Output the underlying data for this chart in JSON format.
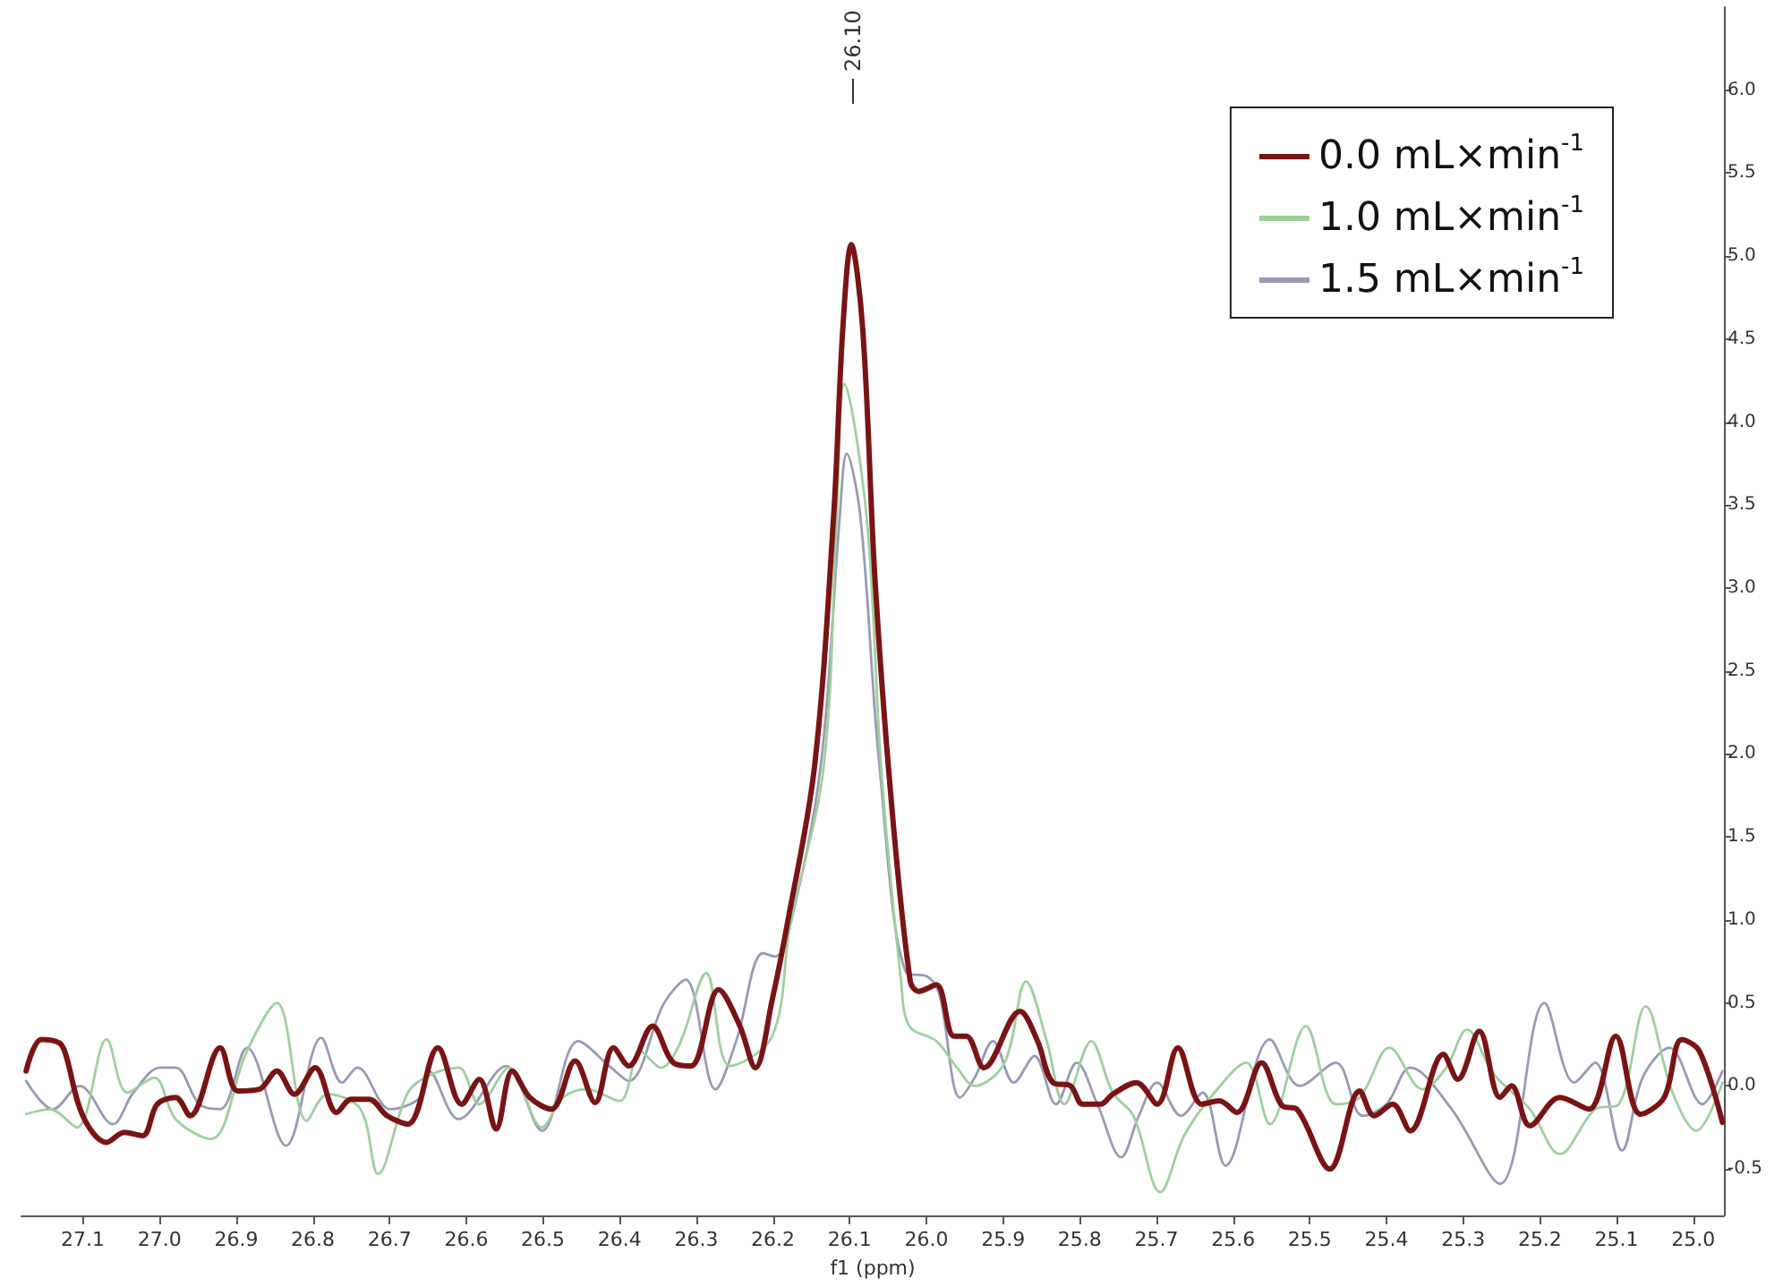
{
  "chart_data": {
    "type": "line",
    "xlabel": "f1 (ppm)",
    "xlim": [
      27.18,
      24.96
    ],
    "xticks": [
      27.1,
      {
        "value": 27,
        "label": "27.0"
      },
      26.9,
      26.8,
      26.7,
      26.6,
      26.5,
      26.4,
      26.3,
      26.2,
      26.1,
      {
        "value": 26,
        "label": "26.0"
      },
      25.9,
      25.8,
      25.7,
      25.6,
      25.5,
      25.4,
      25.3,
      25.2,
      25.1,
      {
        "value": 25,
        "label": "25.0"
      }
    ],
    "ylim": [
      -0.78,
      6.5
    ],
    "yticks": [
      -0.5,
      {
        "value": 0,
        "label": "0.0"
      },
      0.5,
      {
        "value": 1,
        "label": "1.0"
      },
      1.5,
      {
        "value": 2,
        "label": "2.0"
      },
      2.5,
      {
        "value": 3,
        "label": "3.0"
      },
      3.5,
      {
        "value": 4,
        "label": "4.0"
      },
      4.5,
      {
        "value": 5,
        "label": "5.0"
      },
      5.5,
      {
        "value": 6,
        "label": "6.0"
      }
    ],
    "grid": false,
    "legend": "top right",
    "marker": "none",
    "line_style": "solid",
    "annotations": [
      "26.10"
    ],
    "series": [
      {
        "name": "0.0 mL×min$^{-1}$",
        "color": "#7a1414",
        "x": [
          27.174,
          27.154,
          27.131,
          27.123,
          27.1,
          27.069,
          27.046,
          27.022,
          27.003,
          26.979,
          26.96,
          26.921,
          26.898,
          26.87,
          26.847,
          26.824,
          26.797,
          26.769,
          26.75,
          26.727,
          26.703,
          26.676,
          26.637,
          26.606,
          26.583,
          26.561,
          26.54,
          26.517,
          26.489,
          26.458,
          26.432,
          26.408,
          26.388,
          26.357,
          26.33,
          26.307,
          26.271,
          26.244,
          26.223,
          26.201,
          26.182,
          26.146,
          26.121,
          26.109,
          26.098,
          26.083,
          26.067,
          26.046,
          26.021,
          26.01,
          25.987,
          25.964,
          25.948,
          25.925,
          25.878,
          25.855,
          25.835,
          25.812,
          25.796,
          25.773,
          25.757,
          25.726,
          25.699,
          25.672,
          25.641,
          25.618,
          25.595,
          25.563,
          25.536,
          25.517,
          25.474,
          25.435,
          25.416,
          25.392,
          25.369,
          25.326,
          25.307,
          25.279,
          25.252,
          25.237,
          25.213,
          25.174,
          25.136,
          25.101,
          25.069,
          25.038,
          25.015,
          24.992,
          24.962
        ],
        "values": [
          0.09,
          0.28,
          0.26,
          0.2,
          -0.18,
          -0.34,
          -0.28,
          -0.3,
          -0.11,
          -0.07,
          -0.18,
          0.23,
          -0.03,
          -0.02,
          0.09,
          -0.05,
          0.11,
          -0.16,
          -0.08,
          -0.08,
          -0.18,
          -0.23,
          0.23,
          -0.11,
          0.04,
          -0.26,
          0.09,
          -0.07,
          -0.14,
          0.15,
          -0.1,
          0.23,
          0.12,
          0.36,
          0.14,
          0.12,
          0.58,
          0.37,
          0.11,
          0.52,
          0.96,
          1.92,
          3.43,
          4.56,
          5.07,
          4.56,
          3.05,
          1.73,
          0.63,
          0.57,
          0.61,
          0.3,
          0.3,
          0.11,
          0.45,
          0.27,
          0.02,
          0.0,
          -0.11,
          -0.11,
          -0.05,
          0.02,
          -0.11,
          0.23,
          -0.11,
          -0.09,
          -0.16,
          0.14,
          -0.12,
          -0.14,
          -0.5,
          -0.03,
          -0.18,
          -0.11,
          -0.27,
          0.19,
          0.04,
          0.33,
          -0.07,
          0.0,
          -0.24,
          -0.07,
          -0.14,
          0.3,
          -0.17,
          -0.07,
          0.28,
          0.21,
          -0.22
        ]
      },
      {
        "name": "1.0 mL×min$^{-1}$",
        "color": "#9fcf9f",
        "x": [
          27.174,
          27.143,
          27.108,
          27.069,
          27.042,
          27.007,
          26.979,
          26.933,
          26.886,
          26.847,
          26.808,
          26.781,
          26.738,
          26.715,
          26.676,
          26.645,
          26.61,
          26.583,
          26.544,
          26.501,
          26.474,
          26.443,
          26.4,
          26.373,
          26.346,
          26.322,
          26.287,
          26.256,
          26.201,
          26.178,
          26.134,
          26.117,
          26.107,
          26.078,
          26.059,
          26.033,
          26.022,
          25.987,
          25.96,
          25.937,
          25.898,
          25.87,
          25.843,
          25.82,
          25.785,
          25.757,
          25.73,
          25.695,
          25.664,
          25.626,
          25.583,
          25.552,
          25.505,
          25.466,
          25.435,
          25.396,
          25.353,
          25.322,
          25.295,
          25.26,
          25.213,
          25.174,
          25.128,
          25.097,
          25.062,
          25.027,
          24.996,
          24.962
        ],
        "values": [
          -0.17,
          -0.14,
          -0.25,
          0.28,
          -0.04,
          0.05,
          -0.2,
          -0.32,
          0.21,
          0.5,
          -0.21,
          -0.05,
          -0.14,
          -0.53,
          -0.04,
          0.07,
          0.11,
          -0.11,
          0.11,
          -0.25,
          -0.07,
          -0.02,
          -0.09,
          0.21,
          0.11,
          0.25,
          0.68,
          0.12,
          0.3,
          0.96,
          1.92,
          3.43,
          4.23,
          3.43,
          1.92,
          0.63,
          0.36,
          0.27,
          0.11,
          0.0,
          0.14,
          0.63,
          0.27,
          -0.11,
          0.27,
          -0.04,
          -0.18,
          -0.64,
          -0.3,
          -0.05,
          0.14,
          -0.23,
          0.36,
          -0.11,
          -0.07,
          0.23,
          -0.02,
          0.11,
          0.34,
          0.07,
          -0.14,
          -0.41,
          -0.14,
          -0.11,
          0.48,
          -0.04,
          -0.27,
          0.02
        ]
      },
      {
        "name": "1.5 mL×min$^{-1}$",
        "color": "#9a9ab4",
        "x": [
          27.174,
          27.139,
          27.104,
          27.061,
          27.034,
          26.999,
          26.979,
          26.948,
          26.921,
          26.886,
          26.835,
          26.789,
          26.762,
          26.742,
          26.699,
          26.66,
          26.649,
          26.61,
          26.548,
          26.501,
          26.454,
          26.411,
          26.388,
          26.342,
          26.314,
          26.275,
          26.248,
          26.213,
          26.197,
          26.178,
          26.138,
          26.113,
          26.104,
          26.086,
          26.061,
          26.026,
          25.999,
          25.983,
          25.956,
          25.937,
          25.913,
          25.886,
          25.859,
          25.831,
          25.804,
          25.777,
          25.746,
          25.723,
          25.699,
          25.668,
          25.64,
          25.61,
          25.552,
          25.513,
          25.466,
          25.431,
          25.4,
          25.369,
          25.315,
          25.252,
          25.194,
          25.155,
          25.128,
          25.093,
          25.066,
          25.031,
          24.988,
          24.962
        ],
        "values": [
          0.03,
          -0.14,
          0.0,
          -0.23,
          -0.04,
          0.11,
          0.11,
          -0.11,
          -0.14,
          0.23,
          -0.36,
          0.29,
          0.02,
          0.11,
          -0.14,
          -0.07,
          0.09,
          -0.2,
          0.12,
          -0.27,
          0.27,
          0.11,
          0.03,
          0.5,
          0.64,
          -0.02,
          0.27,
          0.8,
          0.78,
          0.96,
          1.92,
          3.43,
          3.81,
          3.43,
          1.92,
          0.68,
          0.66,
          0.55,
          -0.07,
          0.05,
          0.27,
          0.02,
          0.18,
          -0.11,
          0.14,
          -0.11,
          -0.43,
          -0.18,
          0.02,
          -0.18,
          -0.04,
          -0.48,
          0.28,
          0.0,
          0.14,
          -0.18,
          -0.11,
          0.11,
          -0.14,
          -0.59,
          0.5,
          0.02,
          0.14,
          -0.39,
          0.05,
          0.23,
          -0.11,
          0.09
        ]
      }
    ]
  }
}
